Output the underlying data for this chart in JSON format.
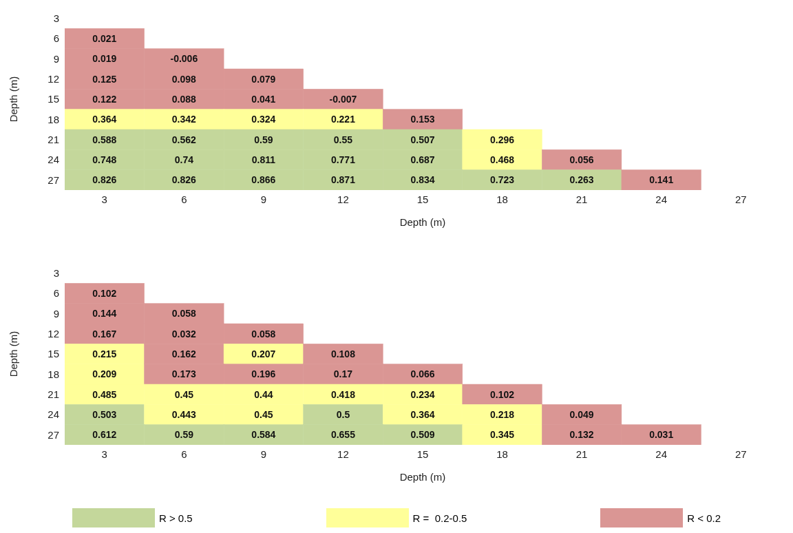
{
  "chart_data": [
    {
      "type": "heatmap",
      "xlabel": "Depth (m)",
      "ylabel": "Depth (m)",
      "data_labels": true,
      "categories": [
        "3",
        "6",
        "9",
        "12",
        "15",
        "18",
        "21",
        "24",
        "27"
      ],
      "y_categories": [
        "3",
        "6",
        "9",
        "12",
        "15",
        "18",
        "21",
        "24",
        "27"
      ],
      "cells": [
        [
          null,
          null,
          null,
          null,
          null,
          null,
          null,
          null,
          null
        ],
        [
          0.021,
          null,
          null,
          null,
          null,
          null,
          null,
          null,
          null
        ],
        [
          0.019,
          -0.006,
          null,
          null,
          null,
          null,
          null,
          null,
          null
        ],
        [
          0.125,
          0.098,
          0.079,
          null,
          null,
          null,
          null,
          null,
          null
        ],
        [
          0.122,
          0.088,
          0.041,
          -0.007,
          null,
          null,
          null,
          null,
          null
        ],
        [
          0.364,
          0.342,
          0.324,
          0.221,
          0.153,
          null,
          null,
          null,
          null
        ],
        [
          0.588,
          0.562,
          0.59,
          0.55,
          0.507,
          0.296,
          null,
          null,
          null
        ],
        [
          0.748,
          0.74,
          0.811,
          0.771,
          0.687,
          0.468,
          0.056,
          null,
          null
        ],
        [
          0.826,
          0.826,
          0.866,
          0.871,
          0.834,
          0.723,
          0.263,
          0.141,
          null
        ]
      ],
      "colors": [
        [
          null,
          null,
          null,
          null,
          null,
          null,
          null,
          null,
          null
        ],
        [
          "#da9694",
          null,
          null,
          null,
          null,
          null,
          null,
          null,
          null
        ],
        [
          "#da9694",
          "#da9694",
          null,
          null,
          null,
          null,
          null,
          null,
          null
        ],
        [
          "#da9694",
          "#da9694",
          "#da9694",
          null,
          null,
          null,
          null,
          null,
          null
        ],
        [
          "#da9694",
          "#da9694",
          "#da9694",
          "#da9694",
          null,
          null,
          null,
          null,
          null
        ],
        [
          "#ffff99",
          "#ffff99",
          "#ffff99",
          "#ffff99",
          "#da9694",
          null,
          null,
          null,
          null
        ],
        [
          "#c4d79b",
          "#c4d79b",
          "#c4d79b",
          "#c4d79b",
          "#c4d79b",
          "#ffff99",
          null,
          null,
          null
        ],
        [
          "#c4d79b",
          "#c4d79b",
          "#c4d79b",
          "#c4d79b",
          "#c4d79b",
          "#ffff99",
          "#da9694",
          null,
          null
        ],
        [
          "#c4d79b",
          "#c4d79b",
          "#c4d79b",
          "#c4d79b",
          "#c4d79b",
          "#c4d79b",
          "#c4d79b",
          "#da9694",
          null
        ]
      ]
    },
    {
      "type": "heatmap",
      "xlabel": "Depth (m)",
      "ylabel": "Depth (m)",
      "data_labels": true,
      "categories": [
        "3",
        "6",
        "9",
        "12",
        "15",
        "18",
        "21",
        "24",
        "27"
      ],
      "y_categories": [
        "3",
        "6",
        "9",
        "12",
        "15",
        "18",
        "21",
        "24",
        "27"
      ],
      "cells": [
        [
          null,
          null,
          null,
          null,
          null,
          null,
          null,
          null,
          null
        ],
        [
          0.102,
          null,
          null,
          null,
          null,
          null,
          null,
          null,
          null
        ],
        [
          0.144,
          0.058,
          null,
          null,
          null,
          null,
          null,
          null,
          null
        ],
        [
          0.167,
          0.032,
          0.058,
          null,
          null,
          null,
          null,
          null,
          null
        ],
        [
          0.215,
          0.162,
          0.207,
          0.108,
          null,
          null,
          null,
          null,
          null
        ],
        [
          0.209,
          0.173,
          0.196,
          0.17,
          0.066,
          null,
          null,
          null,
          null
        ],
        [
          0.485,
          0.45,
          0.44,
          0.418,
          0.234,
          0.102,
          null,
          null,
          null
        ],
        [
          0.503,
          0.443,
          0.45,
          0.5,
          0.364,
          0.218,
          0.049,
          null,
          null
        ],
        [
          0.612,
          0.59,
          0.584,
          0.655,
          0.509,
          0.345,
          0.132,
          0.031,
          null
        ]
      ],
      "colors": [
        [
          null,
          null,
          null,
          null,
          null,
          null,
          null,
          null,
          null
        ],
        [
          "#da9694",
          null,
          null,
          null,
          null,
          null,
          null,
          null,
          null
        ],
        [
          "#da9694",
          "#da9694",
          null,
          null,
          null,
          null,
          null,
          null,
          null
        ],
        [
          "#da9694",
          "#da9694",
          "#da9694",
          null,
          null,
          null,
          null,
          null,
          null
        ],
        [
          "#ffff99",
          "#da9694",
          "#ffff99",
          "#da9694",
          null,
          null,
          null,
          null,
          null
        ],
        [
          "#ffff99",
          "#da9694",
          "#da9694",
          "#da9694",
          "#da9694",
          null,
          null,
          null,
          null
        ],
        [
          "#ffff99",
          "#ffff99",
          "#ffff99",
          "#ffff99",
          "#ffff99",
          "#da9694",
          null,
          null,
          null
        ],
        [
          "#c4d79b",
          "#ffff99",
          "#ffff99",
          "#c4d79b",
          "#ffff99",
          "#ffff99",
          "#da9694",
          null,
          null
        ],
        [
          "#c4d79b",
          "#c4d79b",
          "#c4d79b",
          "#c4d79b",
          "#c4d79b",
          "#ffff99",
          "#da9694",
          "#da9694",
          null
        ]
      ],
      "annotations": [
        "R > 0.5",
        "R =  0.2-0.5",
        "R < 0.2"
      ]
    }
  ]
}
